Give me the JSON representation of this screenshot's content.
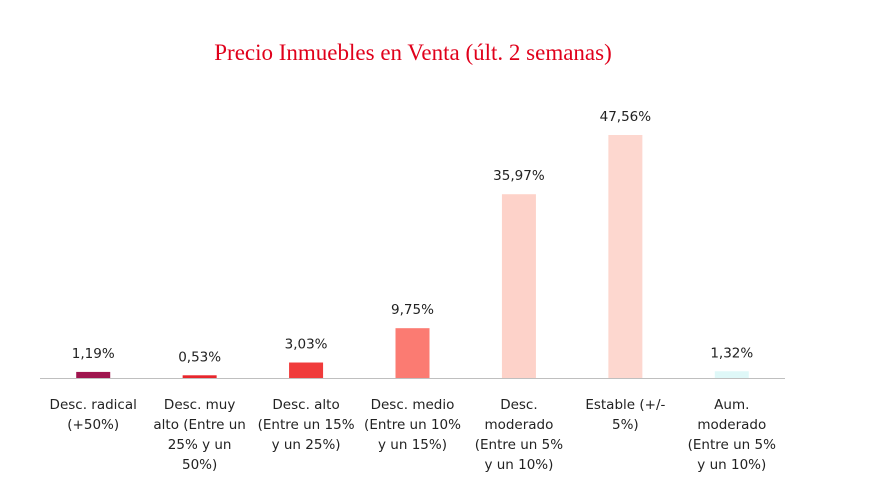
{
  "chart_data": {
    "type": "bar",
    "title": "Precio Inmuebles en Venta (últ. 2 semanas)",
    "categories": [
      [
        "Desc. radical",
        "(+50%)"
      ],
      [
        "Desc. muy",
        "alto (Entre un",
        "25% y un",
        "50%)"
      ],
      [
        "Desc. alto",
        "(Entre un 15%",
        "y un 25%)"
      ],
      [
        "Desc. medio",
        "(Entre un 10%",
        "y un 15%)"
      ],
      [
        "Desc.",
        "moderado",
        "(Entre un 5%",
        "y un 10%)"
      ],
      [
        "Estable (+/-",
        "5%)"
      ],
      [
        "Aum.",
        "moderado",
        "(Entre un 5%",
        "y un 10%)"
      ]
    ],
    "values": [
      1.19,
      0.53,
      3.03,
      9.75,
      35.97,
      47.56,
      1.32
    ],
    "value_labels": [
      "1,19%",
      "0,53%",
      "3,03%",
      "9,75%",
      "35,97%",
      "47,56%",
      "1,32%"
    ],
    "colors": [
      "#a0154e",
      "#e8262c",
      "#f03b3b",
      "#fb7b72",
      "#fdd2c9",
      "#fdd7cf",
      "#dff8f8"
    ],
    "ylim": [
      0,
      50
    ],
    "grid": false,
    "legend": "none"
  }
}
